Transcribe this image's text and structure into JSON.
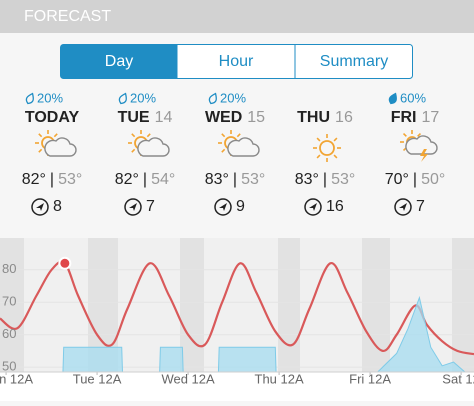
{
  "header": {
    "title": "FORECAST"
  },
  "tabs": [
    "Day",
    "Hour",
    "Summary"
  ],
  "days": [
    {
      "precip": "20%",
      "name": "TODAY",
      "high": "82°",
      "low": "53°",
      "wind": "8"
    },
    {
      "precip": "20%",
      "name": "TUE",
      "date": "14",
      "high": "82°",
      "low": "54°",
      "wind": "7"
    },
    {
      "precip": "20%",
      "name": "WED",
      "date": "15",
      "high": "83°",
      "low": "53°",
      "wind": "9"
    },
    {
      "precip": "",
      "name": "THU",
      "date": "16",
      "high": "83°",
      "low": "53°",
      "wind": "16"
    },
    {
      "precip": "60%",
      "name": "FRI",
      "date": "17",
      "high": "70°",
      "low": "50°",
      "wind": "7"
    }
  ],
  "separator": "|",
  "chart": {
    "type": "line",
    "xlim": [
      -1.6,
      123.4
    ],
    "ylim": [
      48.5,
      89.8
    ],
    "y2lim": [
      0,
      100
    ],
    "yticks": [
      80,
      70,
      60,
      50
    ],
    "xticks": [
      {
        "value": 0,
        "label": "n 12A"
      },
      {
        "value": 24,
        "label": "Tue 12A"
      },
      {
        "value": 48,
        "label": "Wed 12A"
      },
      {
        "value": 72,
        "label": "Thu 12A"
      },
      {
        "value": 96,
        "label": "Fri 12A"
      },
      {
        "value": 120,
        "label": "Sat 12"
      }
    ],
    "series": [
      {
        "color": "#d9595a",
        "x": [
          -1.6,
          3,
          8,
          12,
          15.5,
          19,
          24,
          28,
          32,
          37.9,
          43,
          48,
          52.5,
          57,
          61.7,
          66,
          71,
          75.7,
          80,
          85.5,
          90,
          95,
          99.4,
          103,
          107.9,
          111,
          115,
          119,
          123.4
        ],
        "values": [
          65,
          62,
          72,
          80,
          82,
          72,
          60,
          57,
          68,
          82,
          72,
          60,
          57,
          70,
          82,
          73,
          61,
          57,
          68,
          82,
          73,
          61,
          55,
          60,
          69,
          63,
          58,
          55,
          54
        ]
      },
      {
        "color": "#a6dcf0",
        "axis": "y2",
        "x": [
          15,
          15.2,
          30.5,
          30.7,
          40.5,
          40.7,
          46.5,
          46.7,
          56,
          56.2,
          71,
          71.2,
          98,
          103,
          106,
          109,
          112,
          115,
          118,
          121,
          123.4
        ],
        "values": [
          0,
          20,
          20,
          0,
          0,
          20,
          20,
          0,
          0,
          20,
          20,
          0,
          0,
          15,
          35,
          60,
          20,
          5,
          8,
          0,
          0
        ]
      }
    ]
  }
}
